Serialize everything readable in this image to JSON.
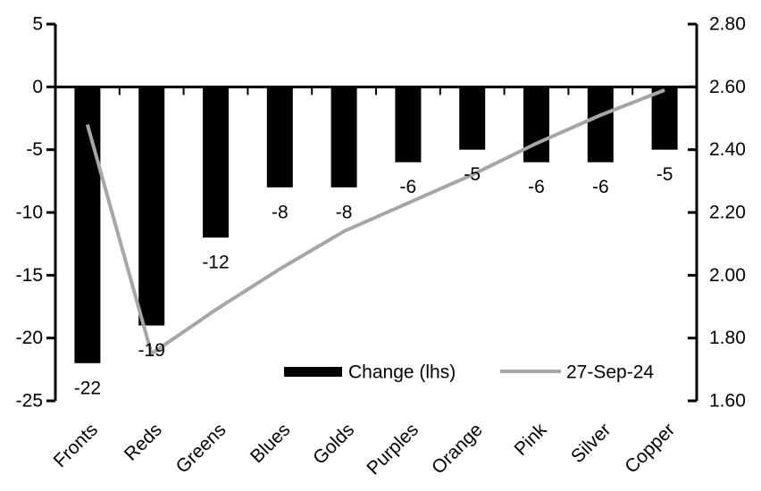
{
  "chart_data": {
    "type": "bar",
    "subtype": "bar-and-line-dual-axis",
    "grid": false,
    "background": "#ffffff",
    "categories": [
      "Fronts",
      "Reds",
      "Greens",
      "Blues",
      "Golds",
      "Purples",
      "Orange",
      "Pink",
      "Silver",
      "Copper"
    ],
    "series": [
      {
        "name": "Change (lhs)",
        "type": "bar",
        "axis": "left",
        "color": "#000000",
        "values": [
          -22,
          -19,
          -12,
          -8,
          -8,
          -6,
          -5,
          -6,
          -6,
          -5
        ],
        "data_labels": [
          "-22",
          "-19",
          "-12",
          "-8",
          "-8",
          "-6",
          "-5",
          "-6",
          "-6",
          "-5"
        ]
      },
      {
        "name": "27-Sep-24",
        "type": "line",
        "axis": "right",
        "color": "#a6a6a6",
        "values": [
          2.48,
          1.75,
          1.89,
          2.02,
          2.14,
          2.23,
          2.32,
          2.42,
          2.51,
          2.59
        ]
      }
    ],
    "left_axis": {
      "min": -25,
      "max": 5,
      "tick_values": [
        5,
        0,
        -5,
        -10,
        -15,
        -20,
        -25
      ],
      "tick_labels": [
        "5",
        "0",
        "-5",
        "-10",
        "-15",
        "-20",
        "-25"
      ]
    },
    "right_axis": {
      "min": 1.6,
      "max": 2.8,
      "tick_values": [
        2.8,
        2.6,
        2.4,
        2.2,
        2.0,
        1.8,
        1.6
      ],
      "tick_labels": [
        "2.80",
        "2.60",
        "2.40",
        "2.20",
        "2.00",
        "1.80",
        "1.60"
      ]
    },
    "legend": {
      "position": "inside-bottom",
      "entries": [
        {
          "label": "Change (lhs)",
          "swatch": "bar",
          "color": "#000000"
        },
        {
          "label": "27-Sep-24",
          "swatch": "line",
          "color": "#a6a6a6"
        }
      ]
    },
    "colors": {
      "bar": "#000000",
      "line": "#a6a6a6",
      "axis": "#000000",
      "text": "#000000",
      "background": "#ffffff"
    }
  }
}
